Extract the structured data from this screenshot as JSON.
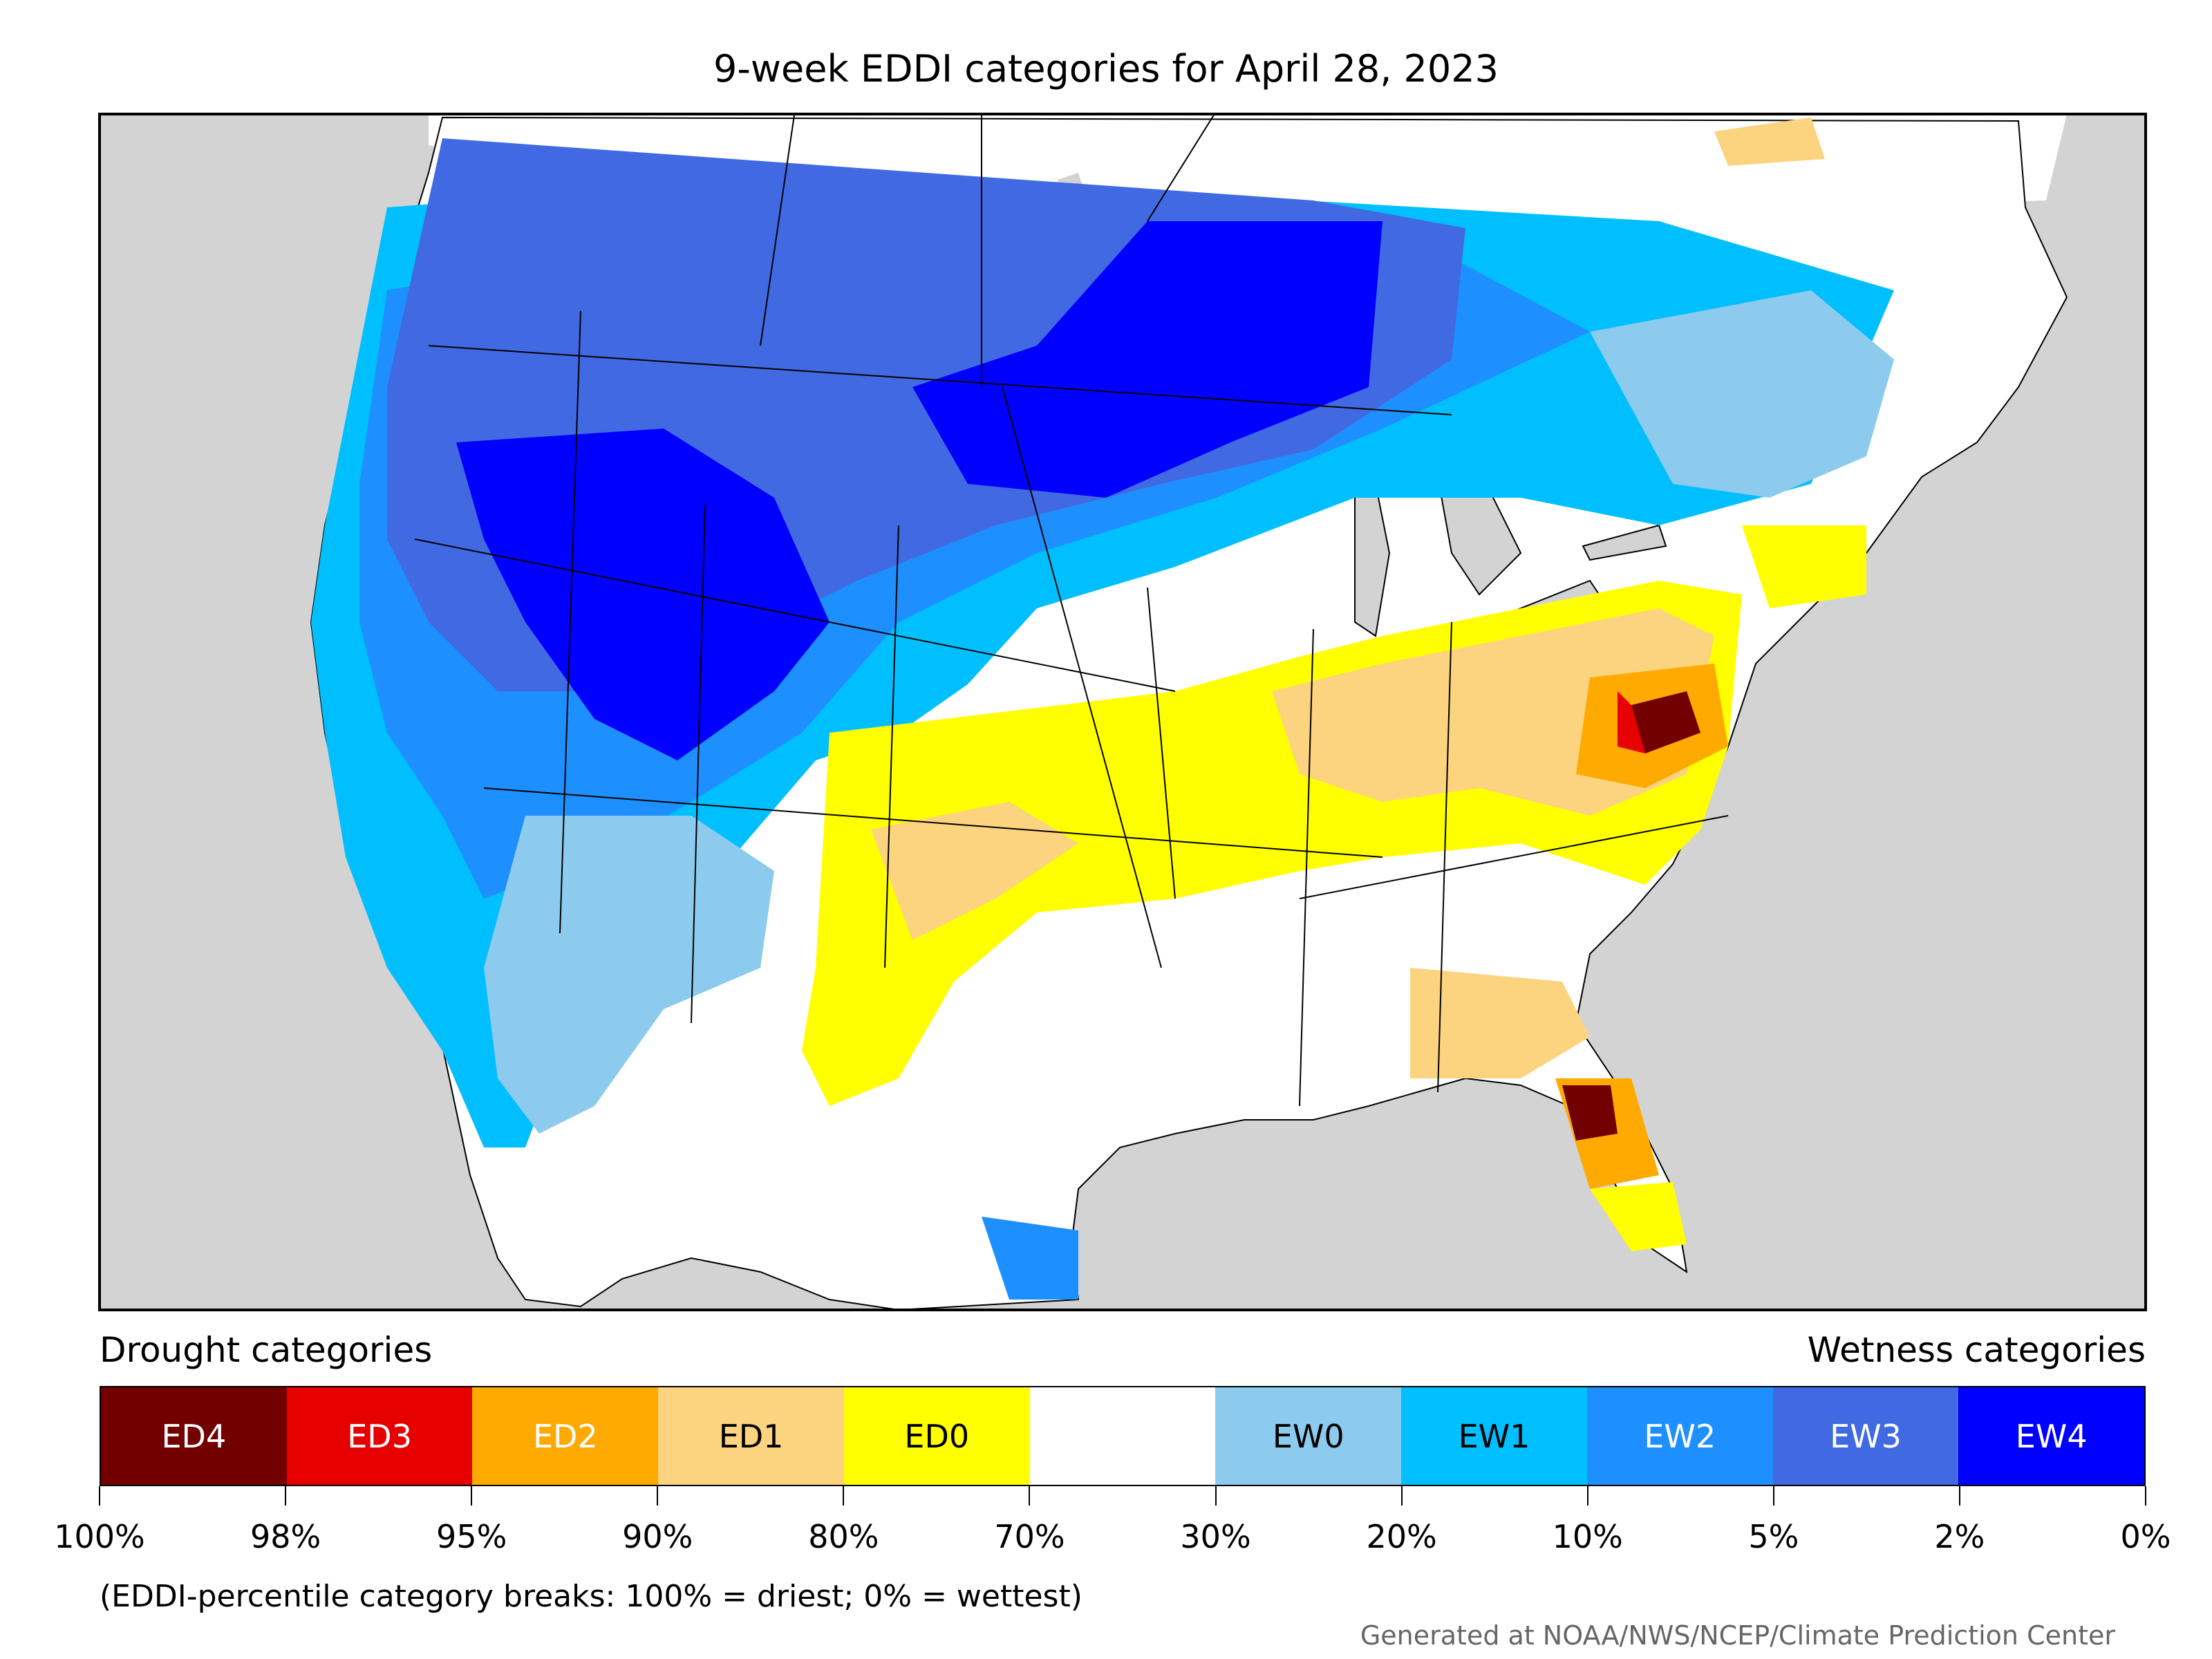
{
  "title": "9-week EDDI categories for April 28, 2023",
  "legend": {
    "drought_caption": "Drought categories",
    "wetness_caption": "Wetness categories",
    "categories": [
      {
        "label": "ED4",
        "color": "#730000",
        "text_color": "#ffffff"
      },
      {
        "label": "ED3",
        "color": "#e60000",
        "text_color": "#ffffff"
      },
      {
        "label": "ED2",
        "color": "#ffaa00",
        "text_color": "#ffffff"
      },
      {
        "label": "ED1",
        "color": "#fcd37f",
        "text_color": "#000000"
      },
      {
        "label": "ED0",
        "color": "#ffff00",
        "text_color": "#000000"
      },
      {
        "label": "",
        "color": "#ffffff",
        "text_color": "#000000"
      },
      {
        "label": "EW0",
        "color": "#8ccbed",
        "text_color": "#000000"
      },
      {
        "label": "EW1",
        "color": "#00bfff",
        "text_color": "#000000"
      },
      {
        "label": "EW2",
        "color": "#1e8fff",
        "text_color": "#ffffff"
      },
      {
        "label": "EW3",
        "color": "#4169e1",
        "text_color": "#ffffff"
      },
      {
        "label": "EW4",
        "color": "#0000ff",
        "text_color": "#ffffff"
      }
    ],
    "tick_labels": [
      "100%",
      "98%",
      "95%",
      "90%",
      "80%",
      "70%",
      "30%",
      "20%",
      "10%",
      "5%",
      "2%",
      "0%"
    ],
    "note": "(EDDI-percentile category breaks: 100% = driest; 0% = wettest)"
  },
  "credit": "Generated at NOAA/NWS/NCEP/Climate Prediction Center",
  "colors": {
    "background_gray": "#d3d3d3",
    "ocean_gray": "#d3d3d3",
    "land_white": "#ffffff",
    "border": "#000000"
  }
}
